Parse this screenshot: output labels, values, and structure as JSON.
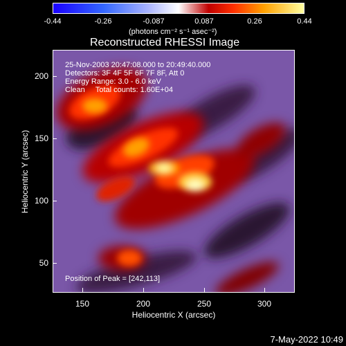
{
  "colorbar": {
    "ticks": [
      "-0.44",
      "-0.26",
      "-0.087",
      "0.087",
      "0.26",
      "0.44"
    ],
    "unit": "(photons cm⁻² s⁻¹ asec⁻²)"
  },
  "title": "Reconstructed RHESSI Image",
  "annotations": {
    "time": "25-Nov-2003 20:47:08.000 to 20:49:40.000",
    "detectors": "Detectors: 3F 4F 5F 6F 7F 8F, Att 0",
    "energy": "Energy Range: 3.0 - 6.0 keV",
    "clean": "Clean     Total counts: 1.60E+04",
    "peak": "Position of Peak = [242,113]"
  },
  "axes": {
    "xlabel": "Heliocentric X (arcsec)",
    "ylabel": "Heliocentric Y (arcsec)",
    "xticks": [
      "150",
      "200",
      "250",
      "300"
    ],
    "yticks": [
      "200",
      "150",
      "100",
      "50"
    ]
  },
  "footer": {
    "date": "7-May-2022 10:49"
  }
}
